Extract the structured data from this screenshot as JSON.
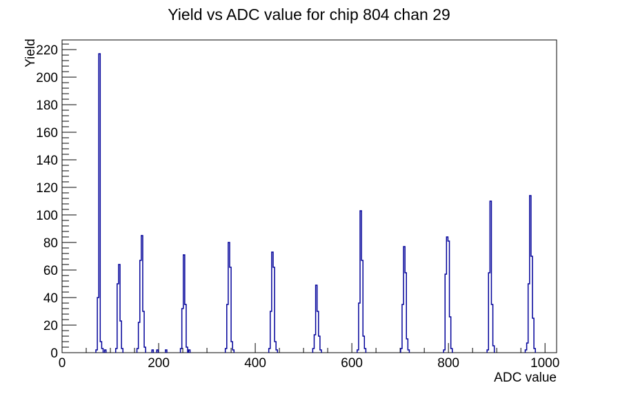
{
  "page": {
    "background": "#ffffff"
  },
  "chart_data": {
    "type": "bar",
    "subtype": "step-histogram",
    "title": "Yield vs ADC value for chip 804 chan 29",
    "xlabel": "ADC value",
    "ylabel": "Yield",
    "xlim": [
      0,
      1024
    ],
    "ylim": [
      0,
      227
    ],
    "grid": false,
    "legend": false,
    "x_major_ticks": [
      0,
      200,
      400,
      600,
      800,
      1000
    ],
    "x_minor_step": 50,
    "y_major_ticks": [
      0,
      20,
      40,
      60,
      80,
      100,
      120,
      140,
      160,
      180,
      200,
      220
    ],
    "y_minor_step": 4,
    "line_color": "#000099",
    "frame_color": "#000000",
    "bin_width": 3,
    "peak_summary": [
      {
        "adc": 76,
        "yield": 217
      },
      {
        "adc": 117,
        "yield": 64
      },
      {
        "adc": 164,
        "yield": 85
      },
      {
        "adc": 251,
        "yield": 71
      },
      {
        "adc": 344,
        "yield": 80
      },
      {
        "adc": 434,
        "yield": 73
      },
      {
        "adc": 525,
        "yield": 49
      },
      {
        "adc": 617,
        "yield": 103
      },
      {
        "adc": 707,
        "yield": 77
      },
      {
        "adc": 796,
        "yield": 84
      },
      {
        "adc": 886,
        "yield": 110
      },
      {
        "adc": 968,
        "yield": 114
      }
    ],
    "bins": [
      [
        70,
        2
      ],
      [
        73,
        40
      ],
      [
        76,
        217
      ],
      [
        79,
        8
      ],
      [
        82,
        3
      ],
      [
        88,
        2
      ],
      [
        111,
        3
      ],
      [
        114,
        50
      ],
      [
        117,
        64
      ],
      [
        120,
        23
      ],
      [
        123,
        3
      ],
      [
        155,
        3
      ],
      [
        158,
        22
      ],
      [
        161,
        67
      ],
      [
        164,
        85
      ],
      [
        167,
        30
      ],
      [
        170,
        4
      ],
      [
        186,
        2
      ],
      [
        196,
        2
      ],
      [
        214,
        2
      ],
      [
        245,
        3
      ],
      [
        248,
        32
      ],
      [
        251,
        71
      ],
      [
        254,
        35
      ],
      [
        257,
        4
      ],
      [
        262,
        2
      ],
      [
        338,
        3
      ],
      [
        341,
        35
      ],
      [
        344,
        80
      ],
      [
        347,
        62
      ],
      [
        350,
        8
      ],
      [
        353,
        2
      ],
      [
        428,
        3
      ],
      [
        431,
        30
      ],
      [
        434,
        73
      ],
      [
        437,
        62
      ],
      [
        440,
        8
      ],
      [
        443,
        2
      ],
      [
        519,
        3
      ],
      [
        522,
        13
      ],
      [
        525,
        49
      ],
      [
        528,
        30
      ],
      [
        531,
        12
      ],
      [
        534,
        2
      ],
      [
        611,
        2
      ],
      [
        614,
        36
      ],
      [
        617,
        103
      ],
      [
        620,
        67
      ],
      [
        623,
        12
      ],
      [
        626,
        3
      ],
      [
        701,
        3
      ],
      [
        704,
        35
      ],
      [
        707,
        77
      ],
      [
        710,
        58
      ],
      [
        713,
        10
      ],
      [
        716,
        2
      ],
      [
        790,
        2
      ],
      [
        793,
        57
      ],
      [
        796,
        84
      ],
      [
        799,
        81
      ],
      [
        802,
        26
      ],
      [
        805,
        3
      ],
      [
        880,
        2
      ],
      [
        883,
        58
      ],
      [
        886,
        110
      ],
      [
        889,
        35
      ],
      [
        892,
        5
      ],
      [
        959,
        2
      ],
      [
        962,
        7
      ],
      [
        965,
        50
      ],
      [
        968,
        114
      ],
      [
        971,
        70
      ],
      [
        974,
        25
      ],
      [
        977,
        3
      ]
    ]
  }
}
